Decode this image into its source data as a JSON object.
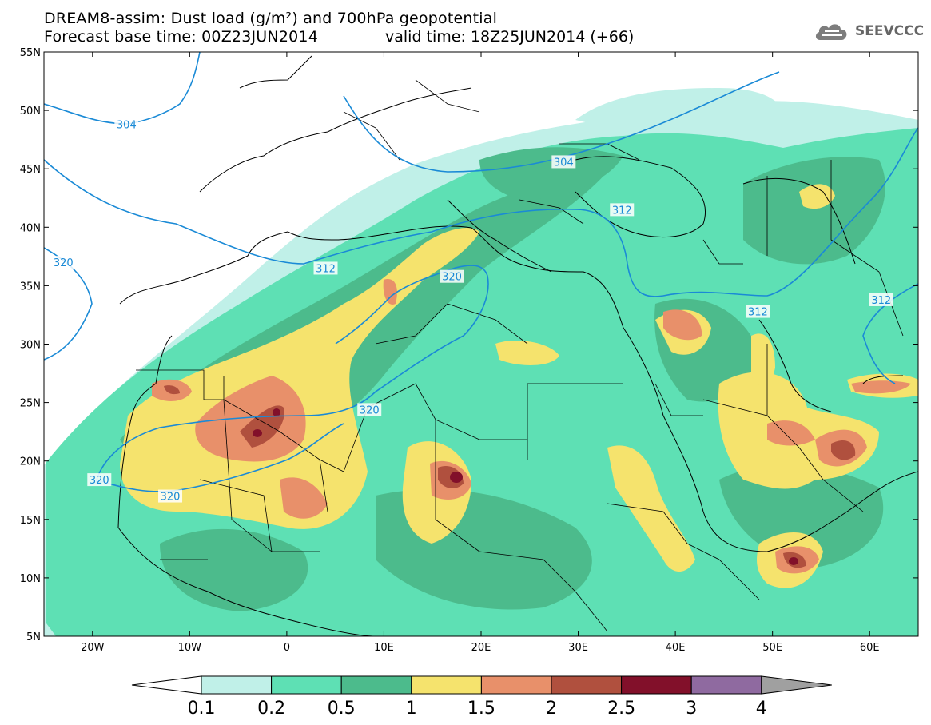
{
  "title": {
    "line1": "DREAM8-assim: Dust load (g/m²) and 700hPa geopotential",
    "line2": "Forecast base time: 00Z23JUN2014",
    "valid": "valid time: 18Z25JUN2014 (+66)"
  },
  "brand": {
    "name": "SEEVCCC",
    "icon": "cloud-logo-icon"
  },
  "axes": {
    "lat_labels": [
      "55N",
      "50N",
      "45N",
      "40N",
      "35N",
      "30N",
      "25N",
      "20N",
      "15N",
      "10N",
      "5N"
    ],
    "lon_labels": [
      "20W",
      "10W",
      "0",
      "10E",
      "20E",
      "30E",
      "40E",
      "50E",
      "60E"
    ],
    "lat_range": [
      5,
      55
    ],
    "lon_range": [
      -25,
      65
    ]
  },
  "contour_labels": [
    {
      "text": "304",
      "lon": -16.5,
      "lat": 48.8
    },
    {
      "text": "304",
      "lon": 28.5,
      "lat": 45.6
    },
    {
      "text": "312",
      "lon": 34.5,
      "lat": 41.5
    },
    {
      "text": "312",
      "lon": 4.0,
      "lat": 36.5
    },
    {
      "text": "312",
      "lon": 48.5,
      "lat": 32.8
    },
    {
      "text": "312",
      "lon": 61.2,
      "lat": 33.8
    },
    {
      "text": "320",
      "lon": -23.0,
      "lat": 37.0
    },
    {
      "text": "320",
      "lon": 17.0,
      "lat": 35.8
    },
    {
      "text": "320",
      "lon": 8.5,
      "lat": 24.4
    },
    {
      "text": "320",
      "lon": -19.3,
      "lat": 18.4
    },
    {
      "text": "320",
      "lon": -12.0,
      "lat": 17.0
    }
  ],
  "colorbar": {
    "labels": [
      "0.1",
      "0.2",
      "0.5",
      "1",
      "1.5",
      "2",
      "2.5",
      "3",
      "4"
    ],
    "colors": [
      "#c0f0e8",
      "#5ee0b4",
      "#4cbb8c",
      "#f5e36d",
      "#e8906a",
      "#b0503e",
      "#82102a",
      "#8f6aa0",
      "#a0a0a0"
    ]
  },
  "colors": {
    "level1": "#c0f0e8",
    "level2": "#5ee0b4",
    "level3": "#4cbb8c",
    "level4": "#f5e36d",
    "level5": "#e8906a",
    "level6": "#b0503e",
    "level7": "#82102a",
    "contour": "#1a8ad6"
  }
}
